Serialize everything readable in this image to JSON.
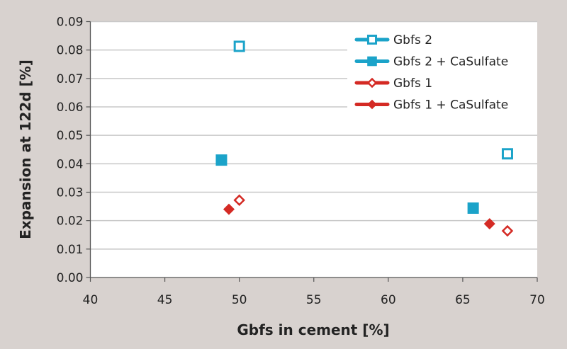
{
  "chart_data": {
    "type": "scatter",
    "title": "",
    "xlabel": "Gbfs in cement [%]",
    "ylabel": "Expansion at 122d [%]",
    "xlim": [
      40,
      70
    ],
    "ylim": [
      0,
      0.09
    ],
    "x_ticks": [
      "40",
      "45",
      "50",
      "55",
      "60",
      "65",
      "70"
    ],
    "y_ticks": [
      "0.00",
      "0.01",
      "0.02",
      "0.03",
      "0.04",
      "0.05",
      "0.06",
      "0.07",
      "0.08",
      "0.09"
    ],
    "grid": "horizontal",
    "legend_position": "top-right",
    "series": [
      {
        "name": "Gbfs 2",
        "marker": "square-open",
        "color": "#1ba3c9",
        "points": [
          [
            50.0,
            0.0813
          ],
          [
            68.0,
            0.0435
          ]
        ]
      },
      {
        "name": "Gbfs 2 + CaSulfate",
        "marker": "square-filled",
        "color": "#1ba3c9",
        "points": [
          [
            48.8,
            0.0413
          ],
          [
            65.7,
            0.0244
          ]
        ]
      },
      {
        "name": "Gbfs 1",
        "marker": "diamond-open",
        "color": "#d42a24",
        "points": [
          [
            50.0,
            0.0272
          ],
          [
            68.0,
            0.0164
          ]
        ]
      },
      {
        "name": "Gbfs 1 + CaSulfate",
        "marker": "diamond-filled",
        "color": "#d42a24",
        "points": [
          [
            49.3,
            0.024
          ],
          [
            66.8,
            0.0189
          ]
        ]
      }
    ]
  }
}
